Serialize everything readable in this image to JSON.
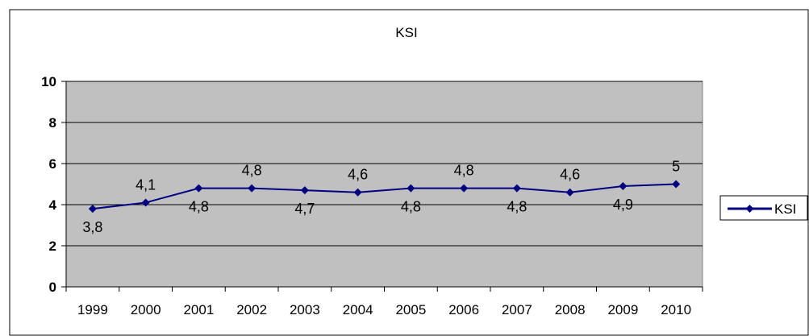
{
  "chart_data": {
    "type": "line",
    "title": "KSI",
    "xlabel": "",
    "ylabel": "",
    "ylim": [
      0,
      10
    ],
    "yticks": [
      "0",
      "2",
      "4",
      "6",
      "8",
      "10"
    ],
    "categories": [
      "1999",
      "2000",
      "2001",
      "2002",
      "2003",
      "2004",
      "2005",
      "2006",
      "2007",
      "2008",
      "2009",
      "2010"
    ],
    "series": [
      {
        "name": "KSI",
        "values": [
          3.8,
          4.1,
          4.8,
          4.8,
          4.7,
          4.6,
          4.8,
          4.8,
          4.8,
          4.6,
          4.9,
          5.0
        ],
        "labels": [
          "3,8",
          "4,1",
          "4,8",
          "4,8",
          "4,7",
          "4,6",
          "4,8",
          "4,8",
          "4,8",
          "4,6",
          "4,9",
          "5"
        ],
        "color": "#000080"
      }
    ],
    "grid": true,
    "legend_position": "right",
    "plot_background": "#c0c0c0"
  }
}
